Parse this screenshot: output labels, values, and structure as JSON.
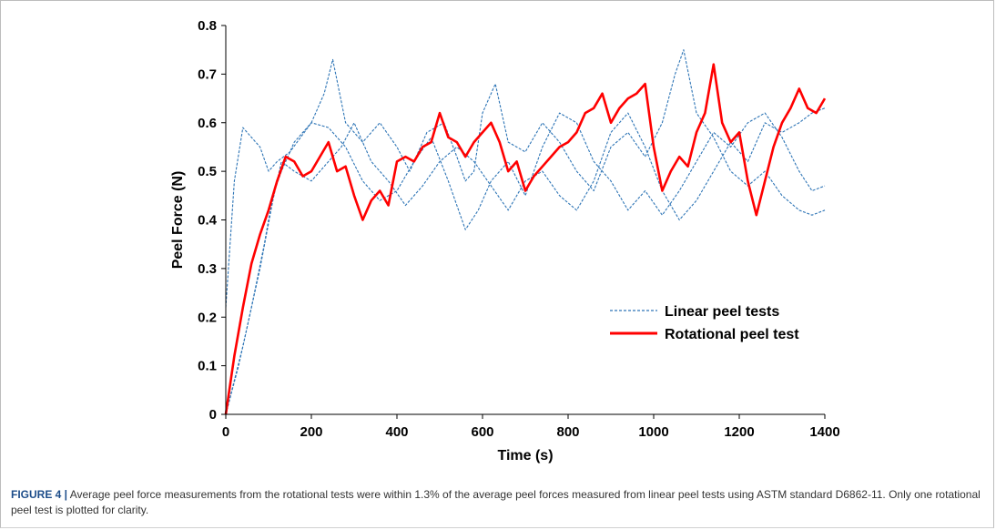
{
  "chart_data": {
    "type": "line",
    "title": "",
    "xlabel": "Time (s)",
    "ylabel": "Peel Force (N)",
    "xlim": [
      0,
      1400
    ],
    "ylim": [
      0,
      0.8
    ],
    "xticks": [
      0,
      200,
      400,
      600,
      800,
      1000,
      1200,
      1400
    ],
    "yticks": [
      0,
      0.1,
      0.2,
      0.3,
      0.4,
      0.5,
      0.6,
      0.7,
      0.8
    ],
    "grid": false,
    "legend": "center-right",
    "series": [
      {
        "name": "Linear peel tests",
        "style": "dashed",
        "color": "#2e75b6",
        "x": [
          0,
          20,
          40,
          60,
          80,
          100,
          120,
          150,
          200,
          230,
          250,
          280,
          320,
          360,
          400,
          430,
          470,
          510,
          540,
          560,
          580,
          600,
          630,
          660,
          700,
          740,
          780,
          820,
          860,
          900,
          940,
          980,
          1020,
          1050,
          1070,
          1100,
          1140,
          1180,
          1220,
          1260,
          1300,
          1340,
          1370,
          1400
        ],
        "y": [
          0.22,
          0.48,
          0.59,
          0.57,
          0.55,
          0.5,
          0.52,
          0.54,
          0.6,
          0.66,
          0.73,
          0.6,
          0.56,
          0.6,
          0.55,
          0.5,
          0.58,
          0.6,
          0.53,
          0.48,
          0.5,
          0.62,
          0.68,
          0.56,
          0.54,
          0.6,
          0.56,
          0.5,
          0.46,
          0.55,
          0.58,
          0.53,
          0.6,
          0.7,
          0.75,
          0.62,
          0.57,
          0.5,
          0.47,
          0.5,
          0.45,
          0.42,
          0.41,
          0.42
        ]
      },
      {
        "name": "",
        "style": "dashed",
        "color": "#2e75b6",
        "x": [
          0,
          30,
          60,
          90,
          110,
          130,
          160,
          200,
          240,
          280,
          320,
          360,
          400,
          440,
          480,
          520,
          560,
          590,
          620,
          660,
          700,
          740,
          780,
          820,
          860,
          900,
          940,
          980,
          1020,
          1060,
          1100,
          1140,
          1180,
          1220,
          1260,
          1300,
          1340,
          1370,
          1400
        ],
        "y": [
          0.0,
          0.1,
          0.22,
          0.35,
          0.45,
          0.5,
          0.56,
          0.6,
          0.59,
          0.55,
          0.48,
          0.44,
          0.46,
          0.52,
          0.57,
          0.48,
          0.38,
          0.42,
          0.48,
          0.52,
          0.45,
          0.55,
          0.62,
          0.6,
          0.52,
          0.48,
          0.42,
          0.46,
          0.41,
          0.46,
          0.52,
          0.58,
          0.55,
          0.6,
          0.62,
          0.57,
          0.5,
          0.46,
          0.47
        ]
      },
      {
        "name": "",
        "style": "dashed",
        "color": "#2e75b6",
        "x": [
          0,
          40,
          80,
          110,
          130,
          160,
          200,
          240,
          270,
          300,
          340,
          380,
          420,
          460,
          500,
          540,
          580,
          620,
          660,
          700,
          740,
          780,
          820,
          860,
          900,
          940,
          980,
          1020,
          1060,
          1100,
          1140,
          1180,
          1220,
          1260,
          1300,
          1340,
          1370,
          1400
        ],
        "y": [
          0.0,
          0.14,
          0.3,
          0.44,
          0.52,
          0.5,
          0.48,
          0.52,
          0.55,
          0.6,
          0.52,
          0.48,
          0.43,
          0.47,
          0.52,
          0.55,
          0.52,
          0.47,
          0.42,
          0.48,
          0.5,
          0.45,
          0.42,
          0.48,
          0.58,
          0.62,
          0.55,
          0.46,
          0.4,
          0.44,
          0.5,
          0.56,
          0.52,
          0.6,
          0.58,
          0.6,
          0.62,
          0.63
        ]
      },
      {
        "name": "Rotational peel test",
        "style": "solid",
        "color": "#ff0000",
        "x": [
          0,
          20,
          40,
          60,
          80,
          100,
          120,
          140,
          160,
          180,
          200,
          220,
          240,
          260,
          280,
          300,
          320,
          340,
          360,
          380,
          400,
          420,
          440,
          460,
          480,
          500,
          520,
          540,
          560,
          580,
          600,
          620,
          640,
          660,
          680,
          700,
          720,
          740,
          760,
          780,
          800,
          820,
          840,
          860,
          880,
          900,
          920,
          940,
          960,
          980,
          1000,
          1020,
          1040,
          1060,
          1080,
          1100,
          1120,
          1140,
          1160,
          1180,
          1200,
          1220,
          1240,
          1260,
          1280,
          1300,
          1320,
          1340,
          1360,
          1380,
          1400
        ],
        "y": [
          0.0,
          0.12,
          0.22,
          0.31,
          0.37,
          0.42,
          0.48,
          0.53,
          0.52,
          0.49,
          0.5,
          0.53,
          0.56,
          0.5,
          0.51,
          0.45,
          0.4,
          0.44,
          0.46,
          0.43,
          0.52,
          0.53,
          0.52,
          0.55,
          0.56,
          0.62,
          0.57,
          0.56,
          0.53,
          0.56,
          0.58,
          0.6,
          0.56,
          0.5,
          0.52,
          0.46,
          0.49,
          0.51,
          0.53,
          0.55,
          0.56,
          0.58,
          0.62,
          0.63,
          0.66,
          0.6,
          0.63,
          0.65,
          0.66,
          0.68,
          0.55,
          0.46,
          0.5,
          0.53,
          0.51,
          0.58,
          0.62,
          0.72,
          0.6,
          0.56,
          0.58,
          0.48,
          0.41,
          0.48,
          0.55,
          0.6,
          0.63,
          0.67,
          0.63,
          0.62,
          0.65
        ]
      }
    ]
  },
  "caption": {
    "lead": "FIGURE 4 |",
    "text": " Average peel force measurements from the rotational tests were within 1.3% of the average peel forces measured from linear peel tests using ASTM standard D6862-11. Only one rotational peel test is plotted for clarity."
  }
}
